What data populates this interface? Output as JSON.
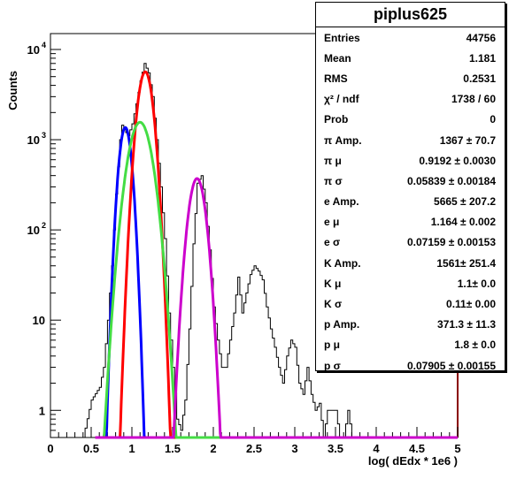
{
  "chart_data": {
    "type": "line",
    "title": "piplus625",
    "xlabel": "log( dEdx * 1e6 )",
    "ylabel": "Counts",
    "xlim": [
      0,
      5
    ],
    "ylim": [
      0.5,
      15000
    ],
    "yscale": "log",
    "x_ticks": [
      "0",
      "0.5",
      "1",
      "1.5",
      "2",
      "2.5",
      "3",
      "3.5",
      "4",
      "4.5",
      "5"
    ],
    "y_ticks": [
      {
        "value": 1,
        "label": "1"
      },
      {
        "value": 10,
        "label": "10"
      },
      {
        "value": 100,
        "label": "10",
        "exp": "2"
      },
      {
        "value": 1000,
        "label": "10",
        "exp": "3"
      },
      {
        "value": 10000,
        "label": "10",
        "exp": "4"
      }
    ],
    "histogram": {
      "color": "#000000",
      "bin_width": 0.025,
      "points": [
        [
          0.4,
          0.5
        ],
        [
          0.5,
          1.3
        ],
        [
          0.6,
          1.8
        ],
        [
          0.65,
          3
        ],
        [
          0.7,
          10
        ],
        [
          0.75,
          40
        ],
        [
          0.8,
          250
        ],
        [
          0.85,
          1000
        ],
        [
          0.875,
          1450
        ],
        [
          0.9,
          1300
        ],
        [
          0.95,
          1100
        ],
        [
          1.0,
          1500
        ],
        [
          1.05,
          2500
        ],
        [
          1.1,
          4500
        ],
        [
          1.15,
          7000
        ],
        [
          1.2,
          5500
        ],
        [
          1.25,
          3000
        ],
        [
          1.3,
          1000
        ],
        [
          1.35,
          300
        ],
        [
          1.4,
          80
        ],
        [
          1.45,
          12
        ],
        [
          1.5,
          3
        ],
        [
          1.55,
          0.8
        ],
        [
          1.6,
          0.6
        ],
        [
          1.65,
          1.3
        ],
        [
          1.7,
          8
        ],
        [
          1.75,
          70
        ],
        [
          1.8,
          330
        ],
        [
          1.85,
          400
        ],
        [
          1.9,
          200
        ],
        [
          1.95,
          60
        ],
        [
          2.0,
          14
        ],
        [
          2.05,
          6
        ],
        [
          2.1,
          3
        ],
        [
          2.15,
          3
        ],
        [
          2.2,
          6
        ],
        [
          2.25,
          12
        ],
        [
          2.3,
          30
        ],
        [
          2.35,
          12
        ],
        [
          2.4,
          20
        ],
        [
          2.45,
          32
        ],
        [
          2.5,
          40
        ],
        [
          2.55,
          35
        ],
        [
          2.6,
          28
        ],
        [
          2.65,
          14
        ],
        [
          2.7,
          8
        ],
        [
          2.75,
          5
        ],
        [
          2.8,
          3
        ],
        [
          2.85,
          2
        ],
        [
          2.9,
          4
        ],
        [
          2.95,
          6
        ],
        [
          3.0,
          5
        ],
        [
          3.05,
          2
        ],
        [
          3.1,
          1.5
        ],
        [
          3.15,
          3
        ],
        [
          3.2,
          1.5
        ],
        [
          3.25,
          1
        ],
        [
          3.3,
          1.2
        ],
        [
          3.35,
          0.5
        ],
        [
          3.4,
          1
        ],
        [
          3.45,
          1
        ],
        [
          3.5,
          1
        ],
        [
          3.55,
          0.5
        ],
        [
          3.6,
          0.5
        ],
        [
          3.65,
          1
        ],
        [
          3.7,
          0.5
        ]
      ]
    },
    "series": [
      {
        "color": "#0000ff",
        "amp": 1367,
        "mu": 0.9192,
        "sigma": 0.05839,
        "xrange": [
          0.55,
          5
        ]
      },
      {
        "color": "#ff0000",
        "amp": 5665,
        "mu": 1.164,
        "sigma": 0.07159,
        "xrange": [
          0.55,
          5
        ]
      },
      {
        "color": "#44dd44",
        "amp": 1561,
        "mu": 1.1,
        "sigma": 0.11,
        "xrange": [
          0.55,
          5
        ]
      },
      {
        "color": "#cc00cc",
        "amp": 371.3,
        "mu": 1.8,
        "sigma": 0.07905,
        "xrange": [
          0.55,
          5
        ]
      }
    ],
    "stats": {
      "title": "piplus625",
      "rows": [
        {
          "label": "Entries",
          "value": "44756"
        },
        {
          "label": "Mean",
          "value": "1.181"
        },
        {
          "label": "RMS",
          "value": "0.2531"
        },
        {
          "label": "χ² / ndf",
          "value": "1738 / 60"
        },
        {
          "label": "Prob",
          "value": "0"
        },
        {
          "label": "π Amp.",
          "value": "1367 ± 70.7"
        },
        {
          "label": "π μ",
          "value": "0.9192 ± 0.0030"
        },
        {
          "label": "π σ",
          "value": "0.05839 ± 0.00184"
        },
        {
          "label": "e Amp.",
          "value": "5665 ± 207.2"
        },
        {
          "label": "e μ",
          "value": "1.164 ± 0.002"
        },
        {
          "label": "e σ",
          "value": "0.07159 ± 0.00153"
        },
        {
          "label": "K Amp.",
          "value": "1561± 251.4"
        },
        {
          "label": "K μ",
          "value": "1.1± 0.0"
        },
        {
          "label": "K σ",
          "value": "0.11± 0.00"
        },
        {
          "label": "p Amp.",
          "value": "371.3 ± 11.3"
        },
        {
          "label": "p μ",
          "value": "1.8 ± 0.0"
        },
        {
          "label": "p σ",
          "value": "0.07905 ± 0.00155"
        }
      ]
    }
  }
}
